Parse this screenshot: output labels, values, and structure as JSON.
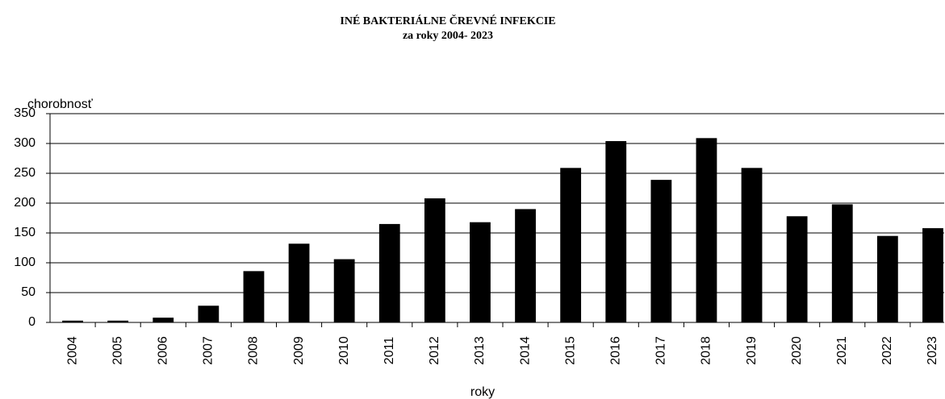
{
  "chart_data": {
    "type": "bar",
    "title": "INÉ BAKTERIÁLNE ČREVNÉ INFEKCIE",
    "subtitle": "za roky 2004- 2023",
    "y_label": "chorobnosť",
    "x_label": "roky",
    "categories": [
      "2004",
      "2005",
      "2006",
      "2007",
      "2008",
      "2009",
      "2010",
      "2011",
      "2012",
      "2013",
      "2014",
      "2015",
      "2016",
      "2017",
      "2018",
      "2019",
      "2020",
      "2021",
      "2022",
      "2023"
    ],
    "values": [
      3,
      3,
      8,
      28,
      86,
      132,
      106,
      165,
      208,
      168,
      190,
      259,
      304,
      239,
      309,
      259,
      178,
      198,
      145,
      158
    ],
    "color": "#000000",
    "ylim": [
      0,
      350
    ],
    "yticks": [
      0,
      50,
      100,
      150,
      200,
      250,
      300,
      350
    ],
    "grid": true
  }
}
